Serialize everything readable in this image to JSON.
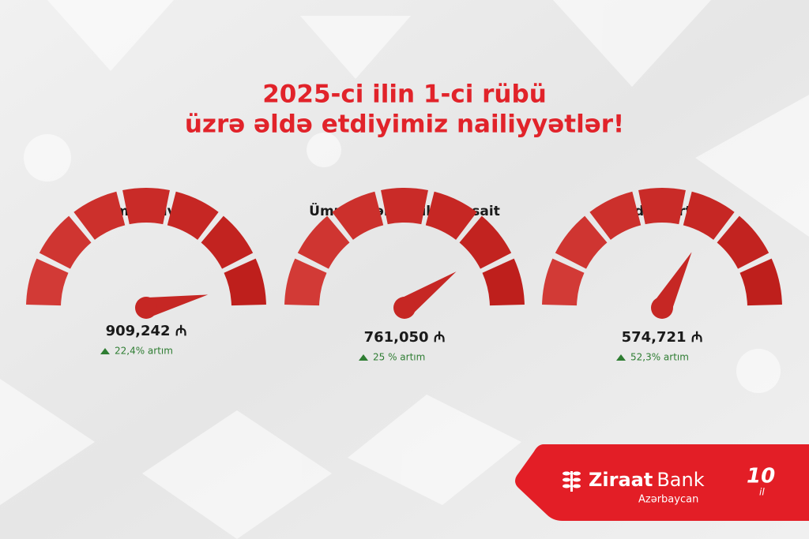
{
  "header": {
    "title_line1": "2025-ci ilin 1-ci rübü",
    "title_line2": "üzrə əldə etdiyimiz nailiyyətlər!"
  },
  "metrics": [
    {
      "label": "Cəmi aktivlər",
      "value": "909,242 ₼",
      "growth": "22,4% artım"
    },
    {
      "label": "Ümumi cəlb edilən vəsait",
      "value": "761,050 ₼",
      "growth": "25 % artım"
    },
    {
      "label": "Kredit portfeli",
      "value": "574,721 ₼",
      "growth": "52,3% artım"
    }
  ],
  "logo": {
    "name_bold": "Ziraat",
    "name_regular": "Bank",
    "country": "Azərbaycan",
    "years": "10",
    "years_suffix": "il"
  }
}
